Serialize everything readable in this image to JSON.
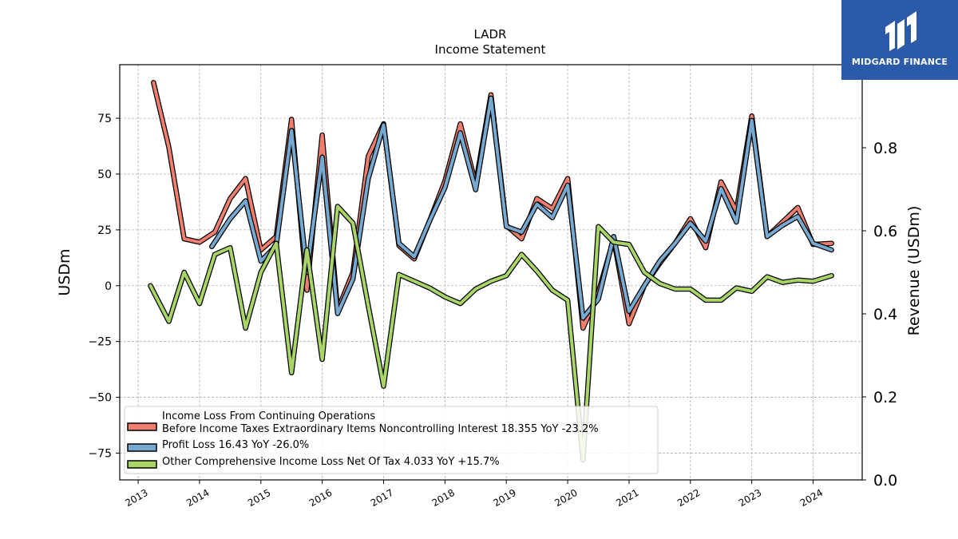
{
  "chart_data": {
    "type": "line",
    "title": "LADR",
    "subtitle": "Income Statement",
    "ylabel": "USDm",
    "y2label": "Revenue (USDm)",
    "ylim": [
      -87,
      99
    ],
    "y2lim": [
      0,
      1.0
    ],
    "yticks": [
      75,
      50,
      25,
      0,
      -25,
      -50,
      -75
    ],
    "ytick_labels": [
      "75",
      "50",
      "25",
      "0",
      "−25",
      "−50",
      "−75"
    ],
    "y2ticks": [
      0.8,
      0.6,
      0.4,
      0.2,
      0.0
    ],
    "y2tick_labels": [
      "0.8",
      "0.6",
      "0.4",
      "0.2",
      "0.0"
    ],
    "xlim": [
      2012.7,
      2024.8
    ],
    "xticks": [
      2013,
      2014,
      2015,
      2016,
      2017,
      2018,
      2019,
      2020,
      2021,
      2022,
      2023,
      2024
    ],
    "xtick_labels": [
      "2013",
      "2014",
      "2015",
      "2016",
      "2017",
      "2018",
      "2019",
      "2020",
      "2021",
      "2022",
      "2023",
      "2024"
    ],
    "grid": true,
    "legend_position": "lower-left",
    "series": [
      {
        "name": "Income Loss From Continuing Operations",
        "name2": "Before Income Taxes Extraordinary Items Noncontrolling Interest  18.355 YoY -23.2%",
        "color": "#f07e6e",
        "points": [
          [
            2013.25,
            91
          ],
          [
            2013.5,
            62
          ],
          [
            2013.75,
            21
          ],
          [
            2014.0,
            19.5
          ],
          [
            2014.25,
            24
          ],
          [
            2014.5,
            39
          ],
          [
            2014.75,
            48
          ],
          [
            2015.0,
            16
          ],
          [
            2015.25,
            22
          ],
          [
            2015.5,
            74.5
          ],
          [
            2015.75,
            -2
          ],
          [
            2016.0,
            67.5
          ],
          [
            2016.25,
            -11
          ],
          [
            2016.5,
            6
          ],
          [
            2016.75,
            58
          ],
          [
            2017.0,
            72.5
          ],
          [
            2017.25,
            18
          ],
          [
            2017.5,
            12
          ],
          [
            2017.75,
            29
          ],
          [
            2018.0,
            47
          ],
          [
            2018.25,
            72.5
          ],
          [
            2018.5,
            45.5
          ],
          [
            2018.75,
            85.5
          ],
          [
            2019.0,
            27
          ],
          [
            2019.25,
            21
          ],
          [
            2019.5,
            39
          ],
          [
            2019.75,
            34.5
          ],
          [
            2020.0,
            48
          ],
          [
            2020.25,
            -19
          ],
          [
            2020.5,
            -3
          ],
          [
            2020.75,
            21
          ],
          [
            2021.0,
            -17
          ],
          [
            2021.25,
            0
          ],
          [
            2021.5,
            10
          ],
          [
            2021.75,
            19
          ],
          [
            2022.0,
            30
          ],
          [
            2022.25,
            17
          ],
          [
            2022.5,
            46.5
          ],
          [
            2022.75,
            33.5
          ],
          [
            2023.0,
            76
          ],
          [
            2023.25,
            22
          ],
          [
            2023.5,
            28.5
          ],
          [
            2023.75,
            35
          ],
          [
            2024.0,
            18.5
          ],
          [
            2024.3,
            19
          ]
        ]
      },
      {
        "name": "Profit Loss  16.43 YoY -26.0%",
        "color": "#76a8d0",
        "points": [
          [
            2014.2,
            17.5
          ],
          [
            2014.5,
            30
          ],
          [
            2014.75,
            38
          ],
          [
            2015.0,
            11
          ],
          [
            2015.25,
            18
          ],
          [
            2015.5,
            69.5
          ],
          [
            2015.75,
            6
          ],
          [
            2016.0,
            57.5
          ],
          [
            2016.25,
            -12.5
          ],
          [
            2016.5,
            3
          ],
          [
            2016.75,
            48
          ],
          [
            2017.0,
            72
          ],
          [
            2017.25,
            19
          ],
          [
            2017.5,
            13
          ],
          [
            2017.75,
            29
          ],
          [
            2018.0,
            44
          ],
          [
            2018.25,
            68.5
          ],
          [
            2018.5,
            43
          ],
          [
            2018.75,
            84
          ],
          [
            2019.0,
            26.5
          ],
          [
            2019.25,
            24
          ],
          [
            2019.5,
            36.5
          ],
          [
            2019.75,
            30.5
          ],
          [
            2020.0,
            45
          ],
          [
            2020.25,
            -14.5
          ],
          [
            2020.5,
            -6
          ],
          [
            2020.75,
            22
          ],
          [
            2021.0,
            -11.5
          ],
          [
            2021.25,
            0
          ],
          [
            2021.5,
            11
          ],
          [
            2021.75,
            19
          ],
          [
            2022.0,
            28
          ],
          [
            2022.25,
            20
          ],
          [
            2022.5,
            43.5
          ],
          [
            2022.75,
            28.5
          ],
          [
            2023.0,
            74
          ],
          [
            2023.25,
            22
          ],
          [
            2023.5,
            27
          ],
          [
            2023.75,
            31
          ],
          [
            2024.0,
            19
          ],
          [
            2024.3,
            16
          ]
        ]
      },
      {
        "name": "Other Comprehensive Income Loss Net Of Tax  4.033 YoY +15.7%",
        "color": "#a8d468",
        "points": [
          [
            2013.2,
            0
          ],
          [
            2013.5,
            -16
          ],
          [
            2013.75,
            6
          ],
          [
            2014.0,
            -8
          ],
          [
            2014.25,
            14
          ],
          [
            2014.5,
            17
          ],
          [
            2014.75,
            -19
          ],
          [
            2015.0,
            6
          ],
          [
            2015.25,
            19
          ],
          [
            2015.5,
            -39
          ],
          [
            2015.75,
            16
          ],
          [
            2016.0,
            -33
          ],
          [
            2016.25,
            35.5
          ],
          [
            2016.5,
            28
          ],
          [
            2016.75,
            -9
          ],
          [
            2017.0,
            -45
          ],
          [
            2017.25,
            5
          ],
          [
            2017.5,
            2
          ],
          [
            2017.75,
            -1
          ],
          [
            2018.0,
            -5
          ],
          [
            2018.25,
            -8
          ],
          [
            2018.5,
            -1.5
          ],
          [
            2018.75,
            2
          ],
          [
            2019.0,
            4.5
          ],
          [
            2019.25,
            14
          ],
          [
            2019.5,
            6.5
          ],
          [
            2019.75,
            -2
          ],
          [
            2020.0,
            -6.5
          ],
          [
            2020.25,
            -78
          ],
          [
            2020.5,
            26.5
          ],
          [
            2020.75,
            19.5
          ],
          [
            2021.0,
            18.5
          ],
          [
            2021.25,
            6
          ],
          [
            2021.5,
            1
          ],
          [
            2021.75,
            -1.5
          ],
          [
            2022.0,
            -1.5
          ],
          [
            2022.25,
            -6.5
          ],
          [
            2022.5,
            -6.5
          ],
          [
            2022.75,
            -1
          ],
          [
            2023.0,
            -2.5
          ],
          [
            2023.25,
            4
          ],
          [
            2023.5,
            1.5
          ],
          [
            2023.75,
            2.5
          ],
          [
            2024.0,
            2
          ],
          [
            2024.3,
            4.5
          ]
        ]
      }
    ]
  },
  "brand": {
    "name": "MIDGARD FINANCE"
  }
}
